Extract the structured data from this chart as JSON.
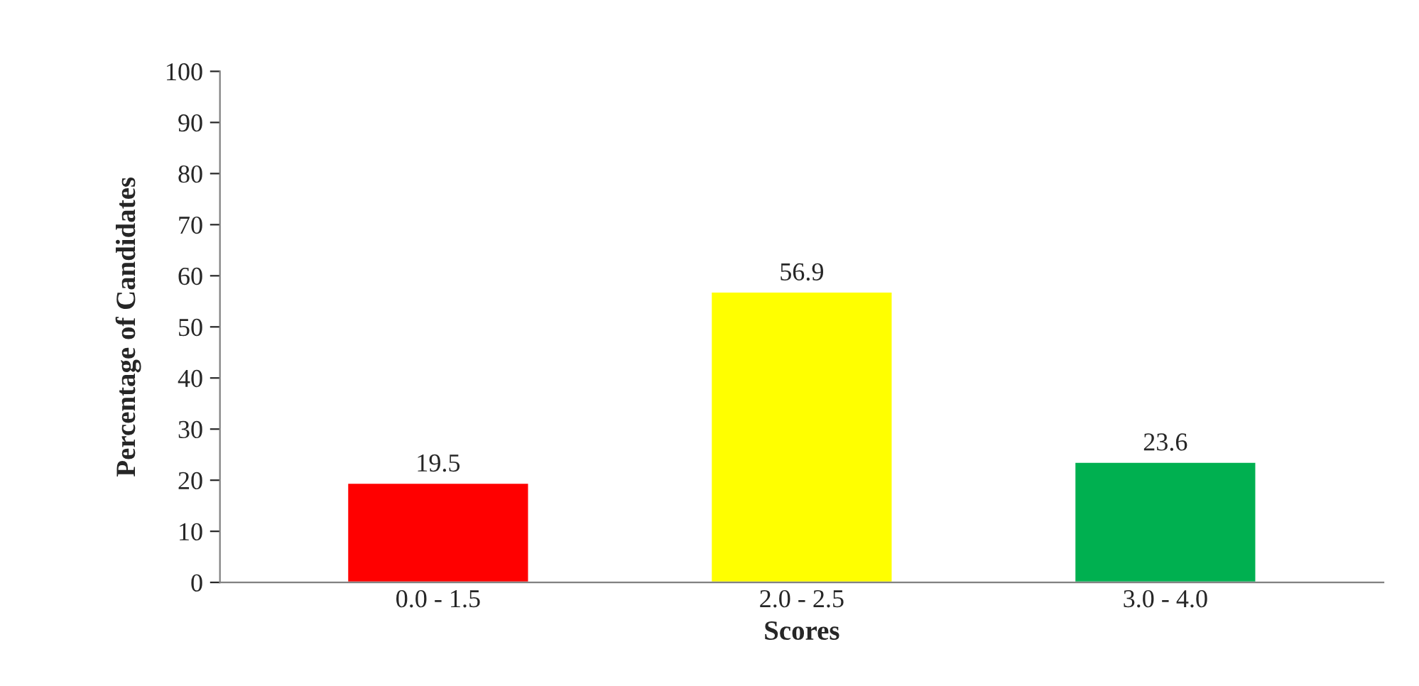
{
  "chart_data": {
    "type": "bar",
    "xlabel": "Scores",
    "ylabel": "Percentage of Candidates",
    "categories": [
      "0.0 - 1.5",
      "2.0 - 2.5",
      "3.0 - 4.0"
    ],
    "values": [
      19.5,
      56.9,
      23.6
    ],
    "colors": [
      "#ff0000",
      "#ffff00",
      "#00b050"
    ],
    "ylim": [
      0,
      100
    ],
    "yticks": [
      0,
      10,
      20,
      30,
      40,
      50,
      60,
      70,
      80,
      90,
      100
    ],
    "data_labels": true,
    "grid": false,
    "legend": false
  }
}
